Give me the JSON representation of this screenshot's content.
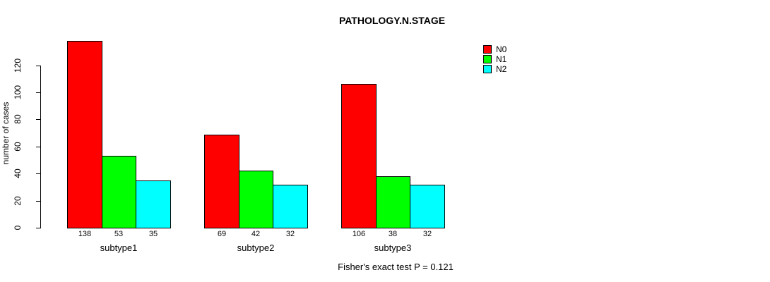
{
  "chart_data": {
    "type": "bar",
    "title": "PATHOLOGY.N.STAGE",
    "ylabel": "number of cases",
    "xlabel": "",
    "categories": [
      "subtype1",
      "subtype2",
      "subtype3"
    ],
    "series": [
      {
        "name": "N0",
        "color": "#ff0000",
        "values": [
          138,
          69,
          106
        ]
      },
      {
        "name": "N1",
        "color": "#00ff00",
        "values": [
          53,
          42,
          38
        ]
      },
      {
        "name": "N2",
        "color": "#00ffff",
        "values": [
          35,
          32,
          32
        ]
      }
    ],
    "bar_value_labels": [
      [
        "138",
        "53",
        "35"
      ],
      [
        "69",
        "42",
        "32"
      ],
      [
        "106",
        "38",
        "32"
      ]
    ],
    "yticks": [
      0,
      20,
      40,
      60,
      80,
      100,
      120
    ],
    "ylim": [
      0,
      140
    ],
    "grid": false,
    "legend_position": "top-right",
    "legend_entries": [
      {
        "label": "N0",
        "color": "#ff0000"
      },
      {
        "label": "N1",
        "color": "#00ff00"
      },
      {
        "label": "N2",
        "color": "#00ffff"
      }
    ],
    "footer": "Fisher's exact test P = 0.121"
  }
}
